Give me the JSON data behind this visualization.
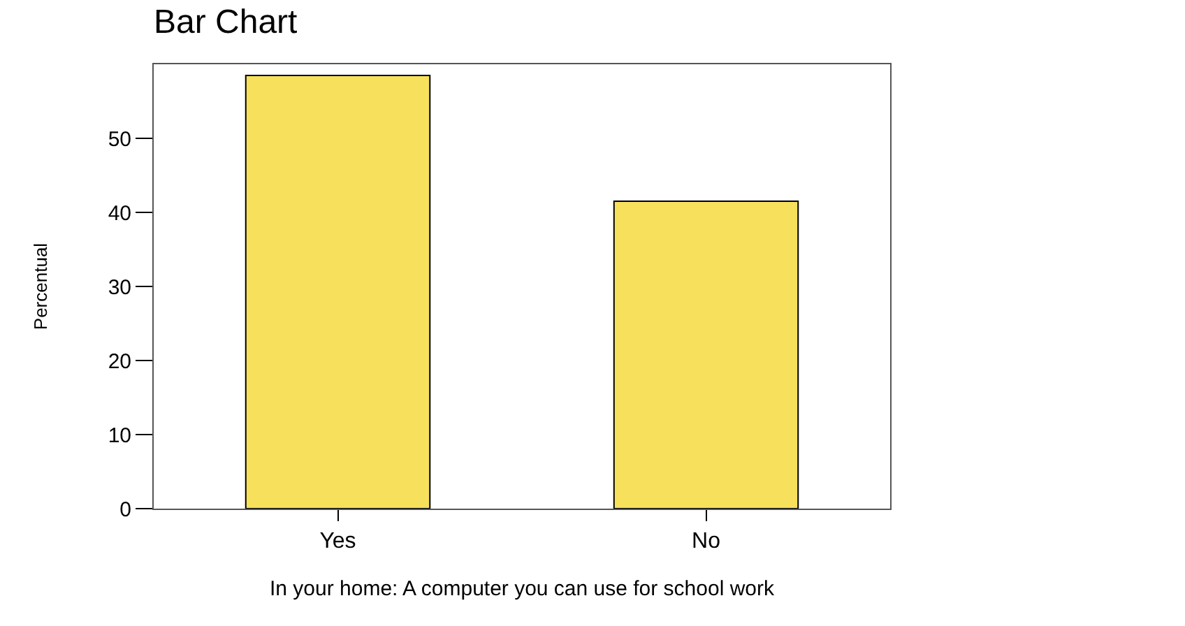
{
  "chart_data": {
    "type": "bar",
    "title": "Bar Chart",
    "xlabel": "In your home: A computer you can use for school work",
    "ylabel": "Percentual",
    "categories": [
      "Yes",
      "No"
    ],
    "values": [
      58.5,
      41.5
    ],
    "color": "#f7e15c",
    "ylim": [
      0,
      60
    ],
    "yticks": [
      0,
      10,
      20,
      30,
      40,
      50
    ],
    "grid": false
  }
}
